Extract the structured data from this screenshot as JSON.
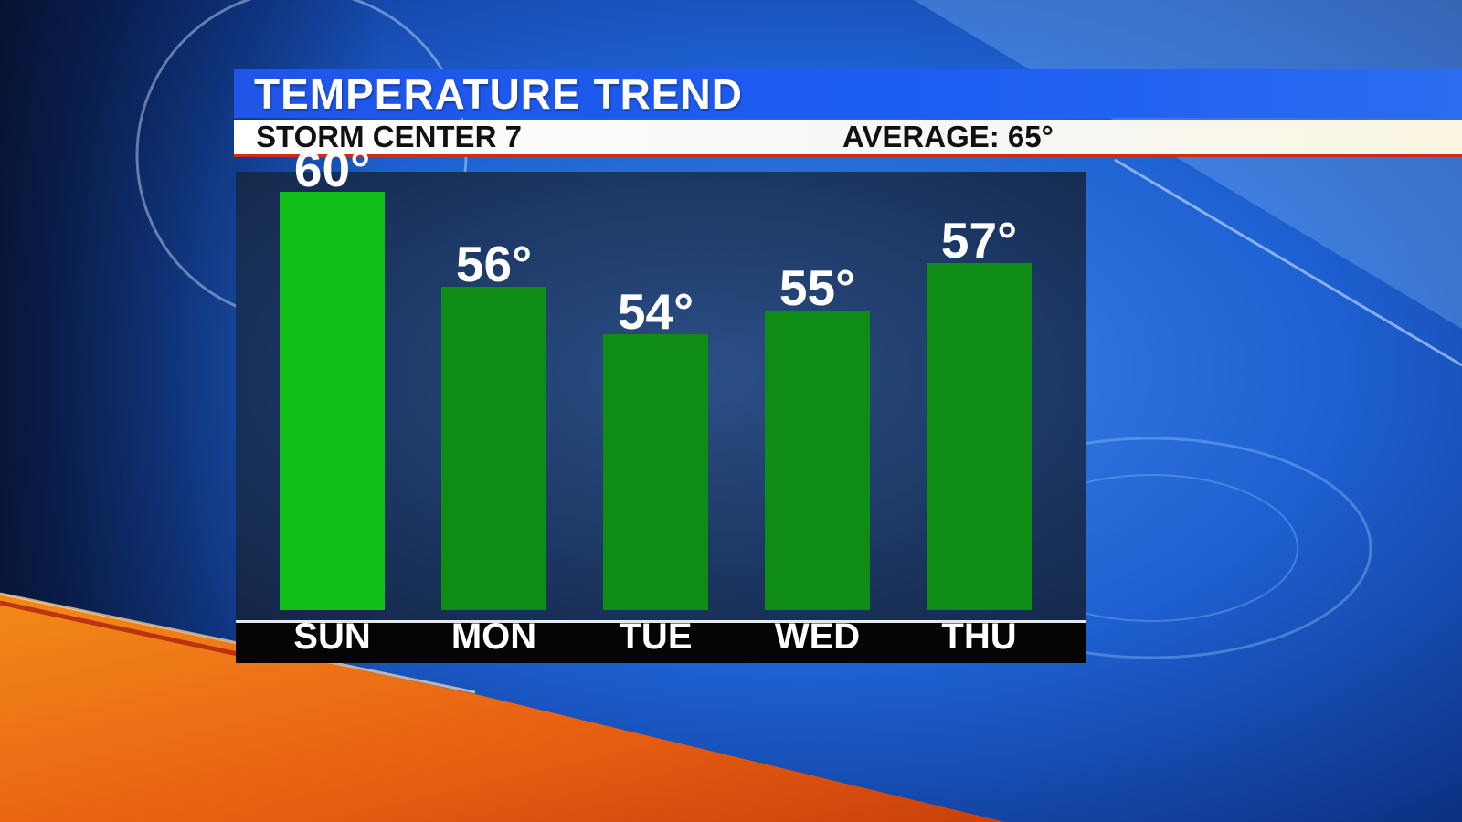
{
  "title": "TEMPERATURE TREND",
  "station": "STORM CENTER 7",
  "average_label": "AVERAGE: 65°",
  "colors": {
    "bar_highlight": "#10c018",
    "bar": "#0f8c16",
    "accent_red": "#d42a1a",
    "title_blue": "#1f56e8"
  },
  "chart_data": {
    "type": "bar",
    "title": "TEMPERATURE TREND",
    "categories": [
      "SUN",
      "MON",
      "TUE",
      "WED",
      "THU"
    ],
    "values": [
      60,
      56,
      54,
      55,
      57
    ],
    "value_labels": [
      "60°",
      "56°",
      "54°",
      "55°",
      "57°"
    ],
    "highlight_index": 0,
    "unit": "°",
    "grid": false
  }
}
